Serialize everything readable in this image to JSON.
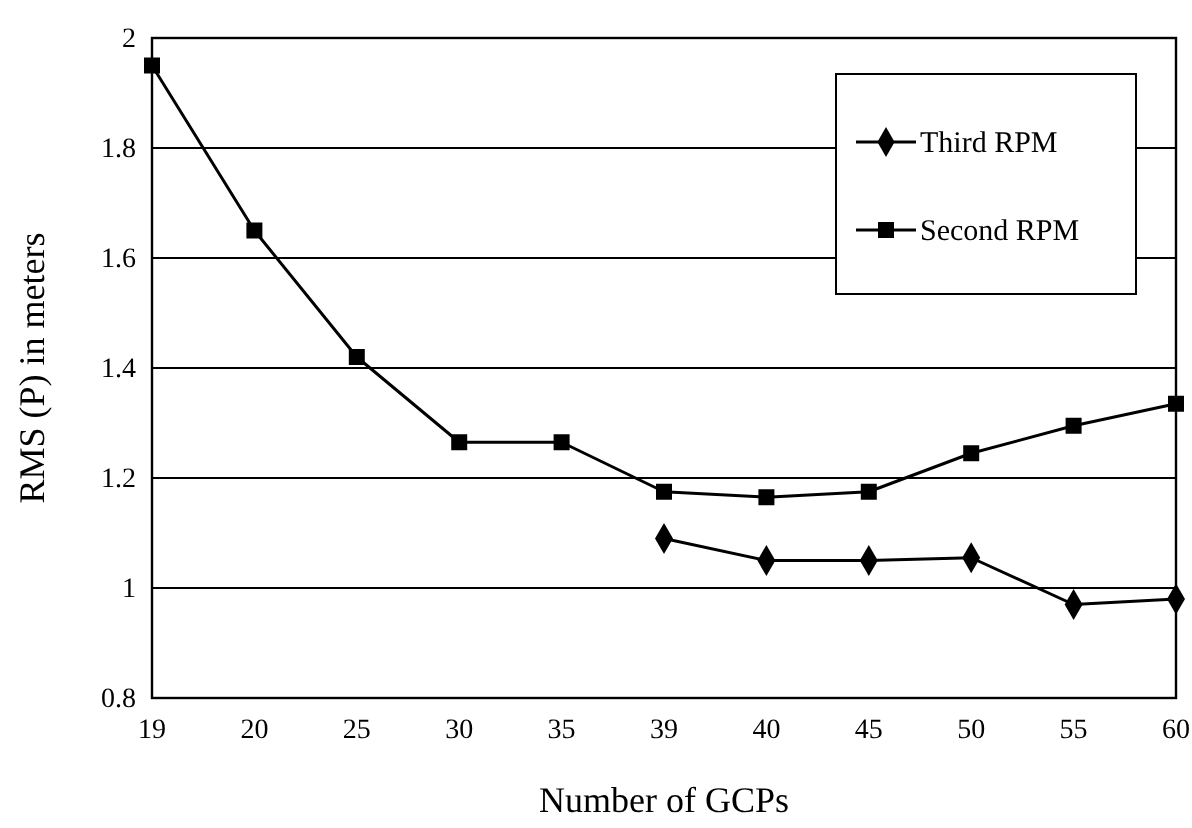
{
  "chart_data": {
    "type": "line",
    "xlabel": "Number of GCPs",
    "ylabel": "RMS (P) in meters",
    "categories": [
      "19",
      "20",
      "25",
      "30",
      "35",
      "39",
      "40",
      "45",
      "50",
      "55",
      "60"
    ],
    "series": [
      {
        "name": "Third RPM",
        "color": "#000000",
        "marker": "diamond",
        "values": [
          null,
          null,
          null,
          null,
          null,
          1.09,
          1.05,
          1.05,
          1.055,
          0.97,
          0.98
        ]
      },
      {
        "name": "Second RPM",
        "color": "#000000",
        "marker": "square",
        "values": [
          1.95,
          1.65,
          1.42,
          1.265,
          1.265,
          1.175,
          1.165,
          1.175,
          1.245,
          1.295,
          1.335
        ]
      }
    ],
    "ylim": [
      0.8,
      2
    ],
    "yticks": [
      0.8,
      1,
      1.2,
      1.4,
      1.6,
      1.8,
      2
    ],
    "grid": "y",
    "legend": "top right",
    "line_style": "solid"
  }
}
